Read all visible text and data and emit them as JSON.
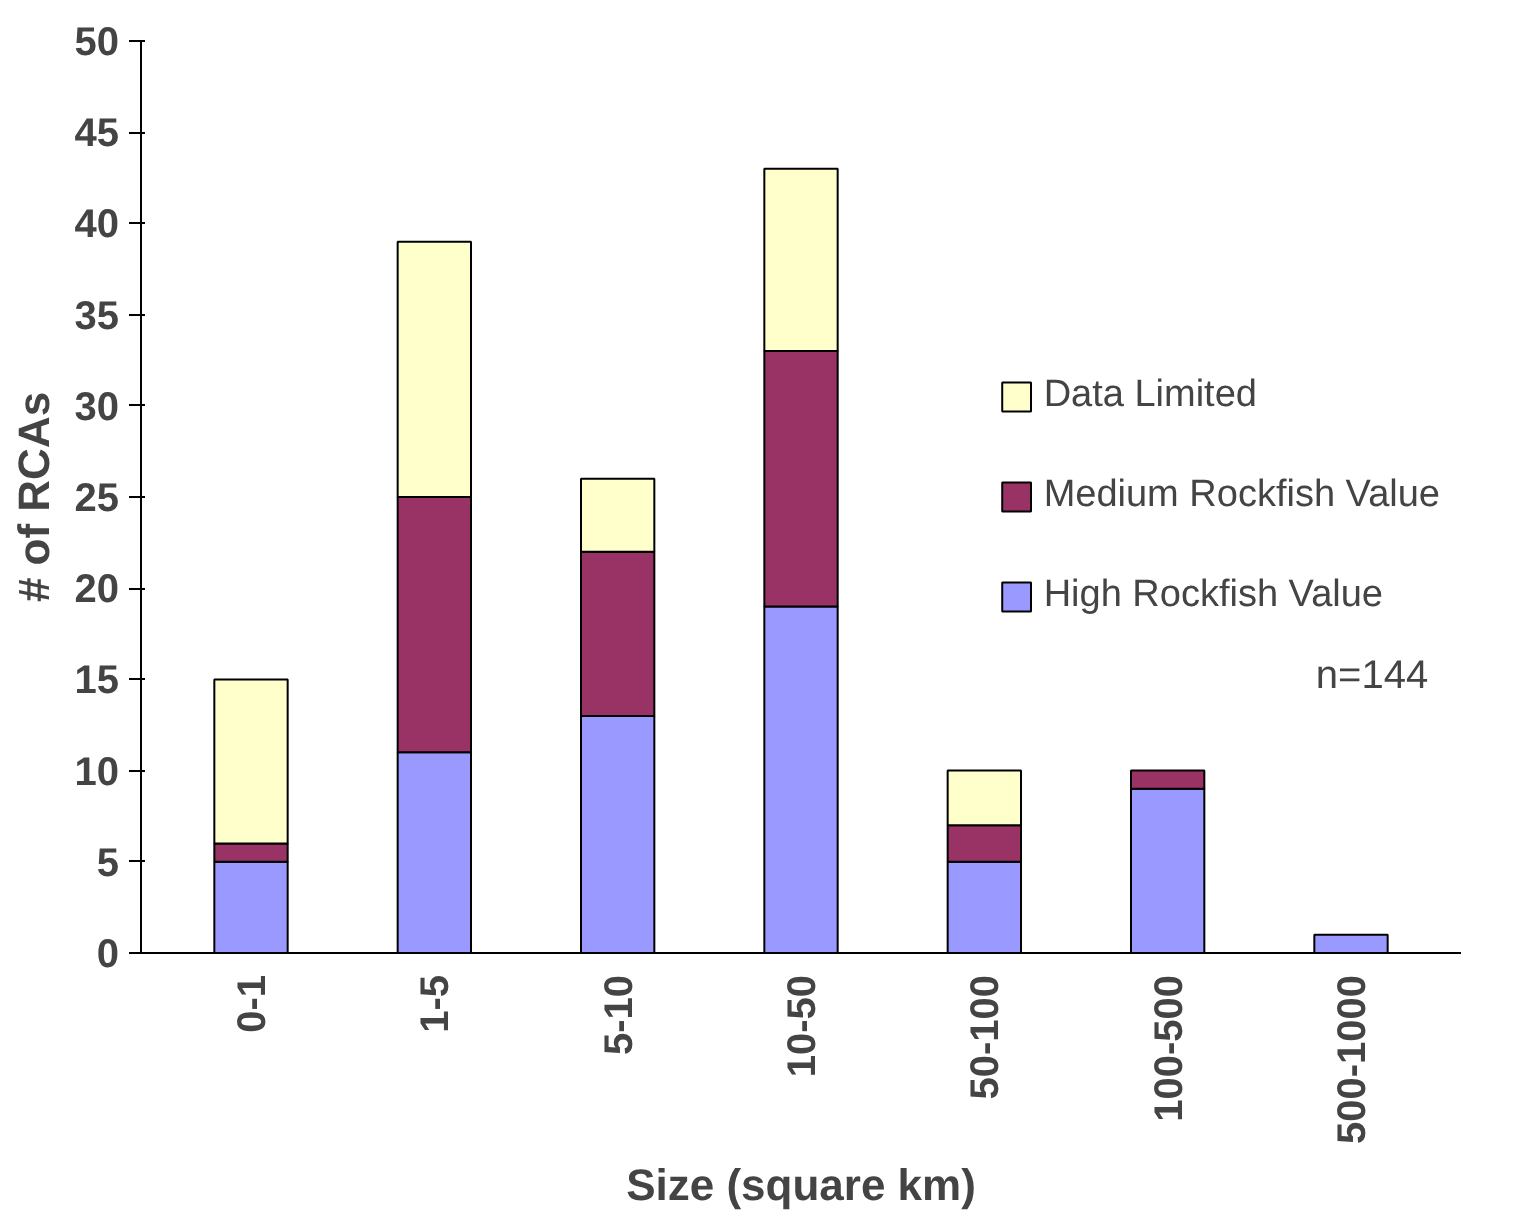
{
  "chart_data": {
    "type": "bar",
    "stacked": true,
    "xlabel": "Size (square km)",
    "ylabel": "# of RCAs",
    "categories": [
      "0-1",
      "1-5",
      "5-10",
      "10-50",
      "50-100",
      "100-500",
      "500-1000"
    ],
    "series": [
      {
        "name": "High Rockfish Value",
        "color": "#9999ff",
        "values": [
          5,
          11,
          13,
          19,
          5,
          9,
          1
        ]
      },
      {
        "name": "Medium Rockfish Value",
        "color": "#993366",
        "values": [
          1,
          14,
          9,
          14,
          2,
          1,
          null
        ]
      },
      {
        "name": "Data Limited",
        "color": "#ffffcc",
        "values": [
          9,
          14,
          4,
          10,
          3,
          null,
          null
        ]
      }
    ],
    "ylim": [
      0,
      50
    ],
    "yticks": [
      0,
      5,
      10,
      15,
      20,
      25,
      30,
      35,
      40,
      45,
      50
    ],
    "grid": false,
    "legend": "right",
    "annotations": [
      "n=144"
    ]
  }
}
